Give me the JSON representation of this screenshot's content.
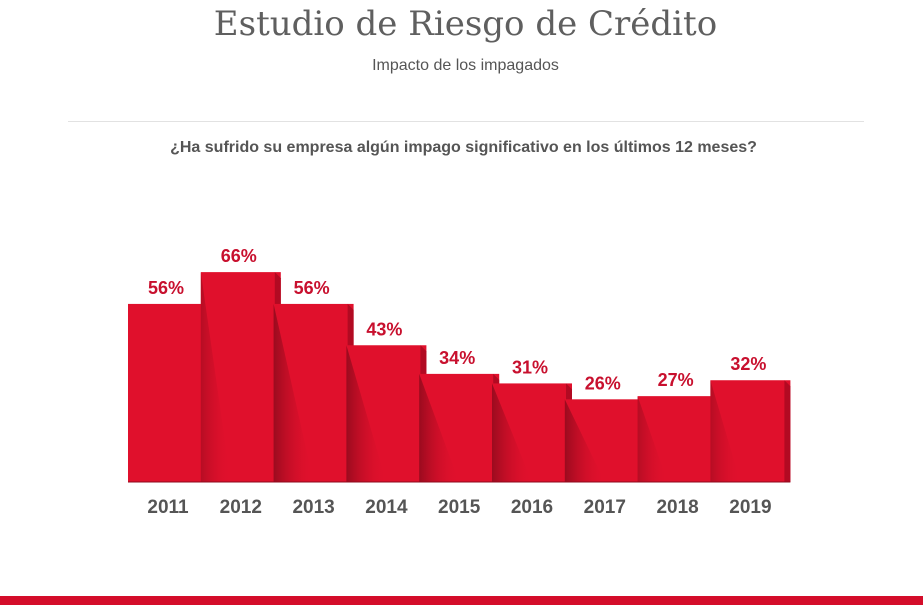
{
  "header": {
    "title": "Estudio de Riesgo de Crédito",
    "subtitle": "Impacto de los impagados"
  },
  "colors": {
    "bar": "#e0102c",
    "bar_side": "#b20a22",
    "bar_shadow": "#8e0a1c",
    "value_label": "#c8102e",
    "year_label": "#555555",
    "footer": "#d40d2a"
  },
  "chart_data": {
    "type": "bar",
    "title": "¿Ha sufrido su empresa algún impago significativo en los últimos 12 meses?",
    "xlabel": "",
    "ylabel": "",
    "categories": [
      "2011",
      "2012",
      "2013",
      "2014",
      "2015",
      "2016",
      "2017",
      "2018",
      "2019"
    ],
    "values": [
      56,
      66,
      56,
      43,
      34,
      31,
      26,
      27,
      32
    ],
    "value_labels": [
      "56%",
      "66%",
      "56%",
      "43%",
      "34%",
      "31%",
      "26%",
      "27%",
      "32%"
    ],
    "unit": "%",
    "ylim": [
      0,
      100
    ],
    "grid": false,
    "legend": "none"
  }
}
